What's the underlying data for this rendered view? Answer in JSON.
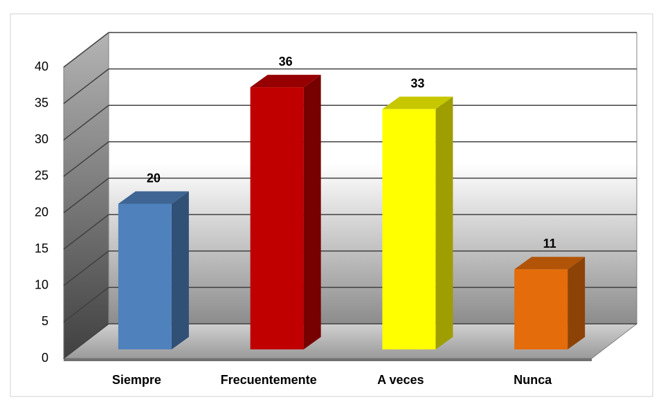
{
  "chart_data": {
    "type": "bar3d",
    "categories": [
      "Siempre",
      "Frecuentemente",
      "A veces",
      "Nunca"
    ],
    "values": [
      20,
      36,
      33,
      11
    ],
    "colors": [
      "#4f81bd",
      "#c00000",
      "#ffff00",
      "#e46c0a"
    ],
    "ylim": [
      0,
      40
    ],
    "yticks": [
      0,
      5,
      10,
      15,
      20,
      25,
      30,
      35,
      40
    ],
    "grid": true
  }
}
